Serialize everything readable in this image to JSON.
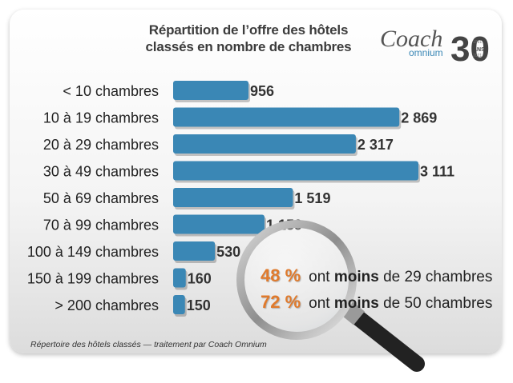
{
  "title_lines": [
    "Répartition de l’offre des hôtels",
    "classés en nombre de chambres"
  ],
  "logo": {
    "word1": "Coach",
    "word2": "omnium",
    "number": "30",
    "ans": "ANS",
    "year_start": "1991",
    "year_end": "2021"
  },
  "chart_data": {
    "type": "bar",
    "orientation": "horizontal",
    "categories": [
      "< 10 chambres",
      "10 à 19 chambres",
      "20 à 29 chambres",
      "30 à 49 chambres",
      "50 à 69 chambres",
      "70 à 99 chambres",
      "100 à 149 chambres",
      "150 à 199 chambres",
      "> 200 chambres"
    ],
    "values": [
      956,
      2869,
      2317,
      3111,
      1519,
      1159,
      530,
      160,
      150
    ],
    "value_labels": [
      "956",
      "2 869",
      "2 317",
      "3 111",
      "1 519",
      "1 159",
      "530",
      "160",
      "150"
    ],
    "title": "Répartition de l’offre des hôtels classés en nombre de chambres",
    "xlabel": "",
    "ylabel": "",
    "xlim": [
      0,
      3111
    ],
    "grid": false,
    "bar_color": "#3a87b5",
    "annotations": [
      {
        "pct": "48 %",
        "pre": "ont",
        "bold": "moins",
        "post": "de 29 chambres"
      },
      {
        "pct": "72 %",
        "pre": "ont",
        "bold": "moins",
        "post": "de 50 chambres"
      }
    ]
  },
  "source": "Répertoire des hôtels classés — traitement par Coach Omnium",
  "colors": {
    "bar": "#3a87b5",
    "accent": "#e07a2c",
    "text": "#3c3c3c"
  }
}
